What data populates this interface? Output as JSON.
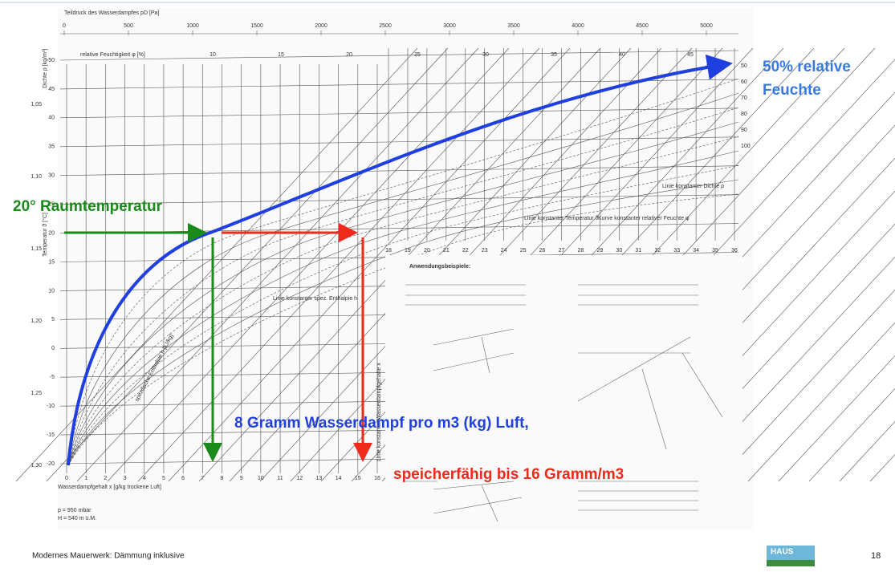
{
  "diagram": {
    "top_axis_title": "Teildruck des Wasserdampfes pD [Pa]",
    "top_ticks": [
      "0",
      "500",
      "1000",
      "1500",
      "2000",
      "2500",
      "3000",
      "3500",
      "4000",
      "4500",
      "5000"
    ],
    "rh_axis_title": "relative Feuchtigkeit φ [%]",
    "rh_ticks": [
      "10",
      "15",
      "20",
      "25",
      "30",
      "35",
      "40",
      "45"
    ],
    "y_axis_title": "Temperatur ϑ [°C]",
    "y_ticks": [
      "50",
      "45",
      "40",
      "35",
      "30",
      "25",
      "20",
      "15",
      "10",
      "5",
      "0",
      "-5",
      "-10",
      "-15",
      "-20"
    ],
    "density_title": "Dichte ρ [kg/m³]",
    "density_ticks": [
      "1,05",
      "1,10",
      "1,15",
      "1,20",
      "1,25",
      "1,30"
    ],
    "x_axis_title": "Wasserdampfgehalt x [g/kg trockene Luft]",
    "x_ticks": [
      "0",
      "1",
      "2",
      "3",
      "4",
      "5",
      "6",
      "7",
      "8",
      "9",
      "10",
      "11",
      "12",
      "13",
      "14",
      "15",
      "16"
    ],
    "x2_ticks": [
      "18",
      "19",
      "20",
      "21",
      "22",
      "23",
      "24",
      "25",
      "26",
      "27",
      "28",
      "29",
      "30",
      "31",
      "32",
      "33",
      "34",
      "35",
      "36"
    ],
    "right_ticks": [
      "50",
      "60",
      "70",
      "80",
      "90",
      "100"
    ],
    "legend": [
      "Linie konstanter Dichte ρ",
      "Linie konstanter Temperatur ϑ",
      "Kurve konstanter relativer Feuchte φ",
      "Linie konstanter spez. Enthalpie h"
    ],
    "enthalpy_label": "spezifische Enthalpie h [kJ/kg]",
    "water_label": "Linie konstanter Wasserdampfgehalte x",
    "conditions": [
      "p = 950 mbar",
      "H = 540 m ü.M."
    ],
    "examples_title": "Anwendungsbeispiele:"
  },
  "annotations": {
    "room_temperature": "20° Raumtemperatur",
    "humidity": [
      "50% relative",
      "Feuchte"
    ],
    "water_content": "8 Gramm Wasserdampf pro m3 (kg) Luft,",
    "capacity": "speicherfähig bis 16 Gramm/m3"
  },
  "footer": {
    "text": "Modernes Mauerwerk: Dämmung inklusive",
    "page": "18",
    "logo": "HAUS"
  }
}
